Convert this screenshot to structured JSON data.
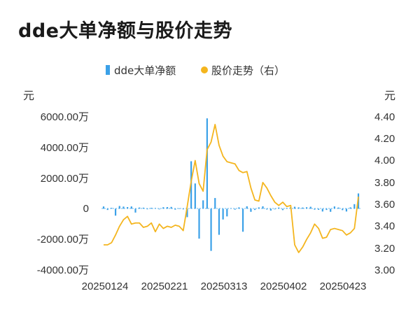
{
  "header": {
    "title": "dde大单净额与股价走势"
  },
  "legend": {
    "items": [
      {
        "label": "dde大单净额",
        "color": "#3ba1e8"
      },
      {
        "label": "股价走势（右）",
        "color": "#f4b51e"
      }
    ]
  },
  "axes": {
    "left_unit": "元",
    "right_unit": "元",
    "left_ticks": [
      "6000.00万",
      "4000.00万",
      "2000.00万",
      "0",
      "-2000.00万",
      "-4000.00万"
    ],
    "right_ticks": [
      "4.40",
      "4.20",
      "4.00",
      "3.80",
      "3.60",
      "3.40",
      "3.20",
      "3.00"
    ],
    "x_ticks": [
      "20250124",
      "20250221",
      "20250313",
      "20250402",
      "20250423"
    ]
  },
  "chart_data": {
    "type": "bar+line",
    "title": "dde大单净额与股价走势",
    "left_axis": {
      "unit": "元",
      "ylim": [
        -4000,
        6000
      ],
      "scale_note": "万"
    },
    "right_axis": {
      "unit": "元",
      "ylim": [
        3.0,
        4.4
      ]
    },
    "x_labels": [
      "20250124",
      "20250221",
      "20250313",
      "20250402",
      "20250423"
    ],
    "series": [
      {
        "name": "dde大单净额",
        "type": "bar",
        "color": "#3ba1e8",
        "values": [
          150,
          -80,
          60,
          -450,
          180,
          140,
          110,
          150,
          -250,
          80,
          70,
          -20,
          60,
          50,
          -40,
          100,
          110,
          120,
          -60,
          30,
          -40,
          -550,
          3100,
          1650,
          -1950,
          550,
          5900,
          -2750,
          700,
          -1700,
          -700,
          -500,
          40,
          -60,
          90,
          -1500,
          160,
          -200,
          -80,
          90,
          160,
          -50,
          -120,
          -40,
          80,
          -90,
          50,
          110,
          130,
          90,
          80,
          100,
          130,
          -60,
          -70,
          -180,
          -80,
          -200,
          150,
          80,
          -90,
          -180,
          90,
          300,
          1000
        ]
      },
      {
        "name": "股价走势（右）",
        "type": "line",
        "color": "#f4b51e",
        "values": [
          3.23,
          3.23,
          3.25,
          3.32,
          3.4,
          3.46,
          3.49,
          3.42,
          3.43,
          3.43,
          3.39,
          3.4,
          3.43,
          3.35,
          3.42,
          3.38,
          3.4,
          3.39,
          3.41,
          3.4,
          3.36,
          3.58,
          3.81,
          4.0,
          3.79,
          3.72,
          4.1,
          4.17,
          4.33,
          4.14,
          4.04,
          3.99,
          3.98,
          3.97,
          3.91,
          3.89,
          3.9,
          3.75,
          3.64,
          3.63,
          3.8,
          3.75,
          3.68,
          3.62,
          3.59,
          3.62,
          3.58,
          3.59,
          3.23,
          3.16,
          3.21,
          3.28,
          3.34,
          3.42,
          3.38,
          3.29,
          3.3,
          3.37,
          3.38,
          3.37,
          3.36,
          3.32,
          3.34,
          3.38,
          3.67
        ]
      }
    ],
    "legend_position": "top-center",
    "grid": false
  }
}
